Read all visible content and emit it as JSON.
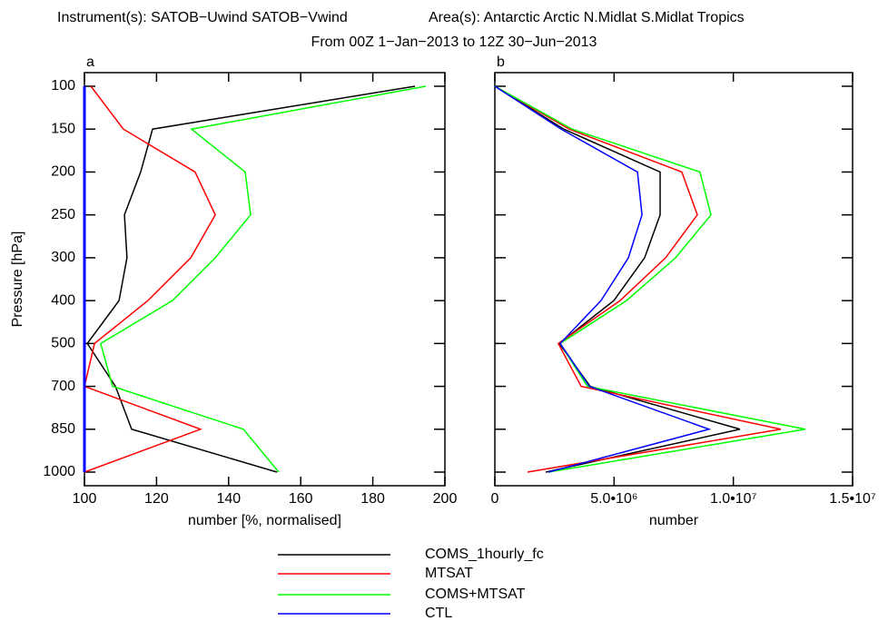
{
  "header": {
    "instruments": "Instrument(s): SATOB−Uwind SATOB−Vwind",
    "areas": "Area(s): Antarctic Arctic N.Midlat S.Midlat Tropics",
    "period": "From 00Z  1−Jan−2013 to 12Z 30−Jun−2013"
  },
  "chart_data": [
    {
      "type": "line",
      "label": "a",
      "ylabel": "Pressure [hPa]",
      "xlabel": "number [%, normalised]",
      "categories": [
        "100",
        "150",
        "200",
        "250",
        "300",
        "400",
        "500",
        "700",
        "850",
        "1000"
      ],
      "xlim": [
        100,
        200
      ],
      "xticks": [
        100,
        120,
        140,
        160,
        180,
        200
      ],
      "series": [
        {
          "name": "COMS_1hourly_fc",
          "color": "#000000",
          "values": [
            191.7,
            118.9,
            115.6,
            111.1,
            111.8,
            109.6,
            100.8,
            108.6,
            113.1,
            153.4
          ]
        },
        {
          "name": "MTSAT",
          "color": "#ff0000",
          "values": [
            101.8,
            110.8,
            130.7,
            136.3,
            129.5,
            117.6,
            102.8,
            100,
            132.2,
            100
          ]
        },
        {
          "name": "COMS+MTSAT",
          "color": "#00ff00",
          "values": [
            194.7,
            129.7,
            144.6,
            146.1,
            136.3,
            124.4,
            104.5,
            107.8,
            144.1,
            153.9
          ]
        },
        {
          "name": "CTL",
          "color": "#0000ff",
          "values": [
            100,
            100,
            100,
            100,
            100,
            100,
            100,
            100,
            100,
            100
          ]
        }
      ]
    },
    {
      "type": "line",
      "label": "b",
      "xlabel": "number",
      "categories": [
        null,
        null,
        null,
        null,
        null,
        null,
        null,
        null,
        null,
        null
      ],
      "xlim": [
        0,
        15000000
      ],
      "xticks": [
        0,
        {
          "value": 5000000,
          "label": "5.0•10⁶"
        },
        {
          "value": 10000000,
          "label": "1.0•10⁷"
        },
        {
          "value": 15000000,
          "label": "1.5•10⁷"
        }
      ],
      "series": [
        {
          "name": "COMS_1hourly_fc",
          "color": "#000000",
          "values": [
            0,
            2890000,
            6930000,
            6930000,
            6280000,
            4990000,
            2700000,
            4000000,
            10280000,
            2130000
          ]
        },
        {
          "name": "MTSAT",
          "color": "#ff0000",
          "values": [
            0,
            3120000,
            7840000,
            8490000,
            7160000,
            5250000,
            2660000,
            3620000,
            11990000,
            1370000
          ]
        },
        {
          "name": "COMS+MTSAT",
          "color": "#00ff00",
          "values": [
            0,
            3240000,
            8600000,
            9060000,
            7580000,
            5520000,
            2740000,
            3880000,
            13020000,
            2250000
          ]
        },
        {
          "name": "CTL",
          "color": "#0000ff",
          "values": [
            0,
            2780000,
            5980000,
            6170000,
            5600000,
            4450000,
            2740000,
            3960000,
            8980000,
            2250000
          ]
        }
      ]
    }
  ]
}
